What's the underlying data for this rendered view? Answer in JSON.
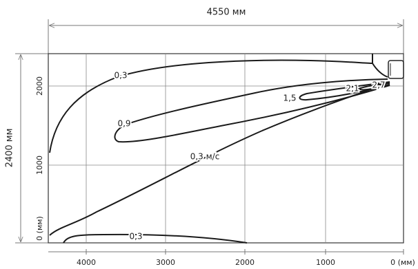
{
  "dimensions": {
    "width": "4550 мм",
    "height": "2400 мм"
  },
  "x_axis": {
    "labels": [
      "4000",
      "3000",
      "2000",
      "1000",
      "0 (мм)"
    ]
  },
  "y_axis": {
    "labels": [
      "0 (мм)",
      "1000",
      "2000"
    ]
  },
  "contours": [
    {
      "label": "0,3"
    },
    {
      "label": "0,9"
    },
    {
      "label": "1,5"
    },
    {
      "label": "2,1"
    },
    {
      "label": "2,7"
    },
    {
      "label": "0,3 м/с"
    },
    {
      "label": "0,3"
    }
  ]
}
